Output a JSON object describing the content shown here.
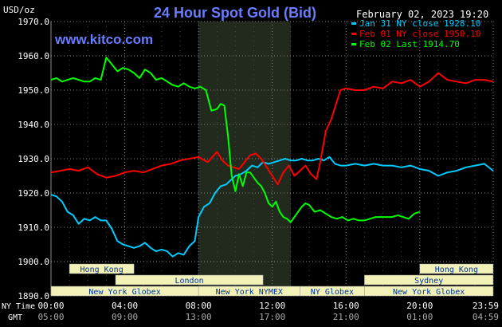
{
  "chart_data": {
    "type": "line",
    "title": "24 Hour Spot Gold (Bid)",
    "watermark": "www.kitco.com",
    "timestamp": "February 02, 2023 19:20",
    "ylabel": "USD/oz",
    "ylim": [
      1890,
      1970
    ],
    "y_ticks": [
      "1970.0",
      "1960.0",
      "1950.0",
      "1940.0",
      "1930.0",
      "1920.0",
      "1910.0",
      "1900.0",
      "1890.0"
    ],
    "x_ticks_ny": [
      "00:00",
      "04:00",
      "08:00",
      "12:00",
      "16:00",
      "20:00",
      "23:59"
    ],
    "x_ticks_gmt": [
      "05:00",
      "09:00",
      "13:00",
      "17:00",
      "21:00",
      "01:00",
      "04:59"
    ],
    "x_tick_hours": [
      0,
      4,
      8,
      12,
      16,
      20,
      23.983
    ],
    "row_labels": [
      "NY Time",
      "GMT"
    ],
    "grid": true,
    "legend_placement": "top-right",
    "shaded_session_hours": [
      8,
      13
    ],
    "colors": {
      "jan31": "#00ccff",
      "feb01": "#ff0000",
      "feb02": "#00ff00",
      "title": "#6a7cff",
      "watermark": "#6a7cff",
      "session_fill": "#f2f2b8",
      "session_text": "#003399",
      "axis_text": "#ffffff",
      "grid": "#888888",
      "shade": "#222a1e"
    },
    "series": [
      {
        "name": "Jan 31 NY close 1928.10",
        "color": "#00ccff",
        "x": [
          0,
          0.3,
          0.6,
          0.9,
          1.2,
          1.5,
          1.8,
          2.1,
          2.4,
          2.7,
          3.0,
          3.3,
          3.6,
          3.9,
          4.2,
          4.5,
          4.8,
          5.1,
          5.4,
          5.7,
          6.0,
          6.3,
          6.6,
          6.9,
          7.2,
          7.5,
          7.8,
          8.0,
          8.3,
          8.6,
          8.9,
          9.2,
          9.5,
          9.7,
          10.0,
          10.3,
          10.6,
          10.9,
          11.2,
          11.5,
          11.8,
          12.1,
          12.4,
          12.7,
          13.0,
          13.3,
          13.6,
          13.9,
          14.2,
          14.5,
          14.8,
          15.1,
          15.4,
          15.7,
          16.0,
          16.5,
          17.0,
          17.5,
          18.0,
          18.5,
          19.0,
          19.5,
          20.0,
          20.5,
          21.0,
          21.5,
          22.0,
          22.5,
          23.0,
          23.5,
          23.98
        ],
        "y": [
          1919.5,
          1919,
          1917.5,
          1914.5,
          1913.5,
          1911,
          1912.5,
          1912,
          1913,
          1912,
          1912,
          1909.5,
          1906,
          1905,
          1904.5,
          1904,
          1904.5,
          1905.5,
          1904,
          1903,
          1903.5,
          1903,
          1901.5,
          1902.5,
          1902,
          1904.5,
          1906,
          1913,
          1916,
          1917,
          1920,
          1922,
          1922.5,
          1923.5,
          1925,
          1925.5,
          1926.5,
          1928,
          1927.5,
          1929,
          1928.5,
          1929,
          1929.5,
          1930,
          1929.5,
          1929.5,
          1930,
          1929.5,
          1929.5,
          1930,
          1929.5,
          1930.5,
          1928.5,
          1928,
          1928,
          1928.5,
          1928,
          1928.5,
          1928,
          1928,
          1927.5,
          1928,
          1927,
          1926.5,
          1925,
          1926,
          1926.5,
          1927.5,
          1928,
          1928.5,
          1926.5
        ]
      },
      {
        "name": "Feb 01 NY close 1950.10",
        "color": "#ff0000",
        "x": [
          0,
          0.5,
          1.0,
          1.5,
          2.0,
          2.5,
          3.0,
          3.5,
          4.0,
          4.5,
          5.0,
          5.5,
          6.0,
          6.5,
          7.0,
          7.5,
          8.0,
          8.5,
          9.0,
          9.3,
          9.6,
          9.9,
          10.2,
          10.5,
          10.8,
          11.1,
          11.4,
          11.7,
          12.0,
          12.3,
          12.6,
          12.9,
          13.2,
          13.5,
          13.8,
          14.1,
          14.4,
          14.6,
          14.9,
          15.2,
          15.4,
          15.7,
          16.0,
          16.5,
          17.0,
          17.5,
          18.0,
          18.5,
          19.0,
          19.5,
          20.0,
          20.5,
          21.0,
          21.5,
          22.0,
          22.5,
          23.0,
          23.5,
          23.98
        ],
        "y": [
          1926,
          1926.5,
          1927,
          1926.5,
          1927.5,
          1925.5,
          1924.5,
          1925,
          1926,
          1926.5,
          1926,
          1927,
          1928,
          1928.5,
          1929.5,
          1930,
          1930.5,
          1929,
          1932,
          1929.5,
          1928,
          1927.5,
          1927,
          1929,
          1931,
          1931.5,
          1930,
          1927.5,
          1925,
          1922.5,
          1926,
          1928,
          1925,
          1926.5,
          1928,
          1925.5,
          1924,
          1929,
          1938,
          1941.5,
          1945,
          1950,
          1950.5,
          1950,
          1950,
          1951,
          1950.5,
          1952.5,
          1952,
          1953,
          1951,
          1952.5,
          1955,
          1953,
          1952.5,
          1952,
          1953,
          1953,
          1952.5
        ]
      },
      {
        "name": "Feb 02 Last 1914.70",
        "color": "#00ff00",
        "x": [
          0,
          0.3,
          0.6,
          0.9,
          1.2,
          1.5,
          1.8,
          2.1,
          2.4,
          2.7,
          3.0,
          3.3,
          3.6,
          3.9,
          4.2,
          4.5,
          4.8,
          5.1,
          5.4,
          5.7,
          6.0,
          6.3,
          6.6,
          6.9,
          7.2,
          7.5,
          7.8,
          8.1,
          8.4,
          8.7,
          9.0,
          9.2,
          9.4,
          9.6,
          9.8,
          10.0,
          10.2,
          10.4,
          10.6,
          10.8,
          11.0,
          11.2,
          11.4,
          11.6,
          11.8,
          12.0,
          12.2,
          12.4,
          12.6,
          12.8,
          13.0,
          13.2,
          13.4,
          13.6,
          13.8,
          14.0,
          14.3,
          14.6,
          14.9,
          15.2,
          15.5,
          15.8,
          16.1,
          16.4,
          16.7,
          17.0,
          17.3,
          17.6,
          17.9,
          18.2,
          18.5,
          18.8,
          19.1,
          19.4,
          19.7,
          20.0
        ],
        "y": [
          1953,
          1953.5,
          1952.5,
          1953,
          1953.5,
          1953,
          1952.5,
          1952.5,
          1953.5,
          1953,
          1959.5,
          1957.5,
          1955.5,
          1956.5,
          1956,
          1955,
          1953.5,
          1956,
          1955,
          1953,
          1953.5,
          1952.5,
          1951.5,
          1951,
          1952,
          1951,
          1950.5,
          1951,
          1950,
          1944,
          1944.5,
          1946,
          1945.5,
          1936.5,
          1925,
          1920.5,
          1925.5,
          1922,
          1926,
          1926,
          1924.5,
          1923,
          1922,
          1920,
          1917,
          1916,
          1917.5,
          1914.5,
          1913,
          1912.5,
          1911.5,
          1913,
          1914.5,
          1916,
          1917,
          1916.5,
          1914.5,
          1915,
          1914,
          1913,
          1912.5,
          1913,
          1912,
          1912.5,
          1912,
          1912,
          1912.5,
          1913,
          1913,
          1913,
          1913,
          1913.5,
          1913,
          1912.5,
          1914,
          1914.5
        ]
      }
    ],
    "sessions": [
      {
        "label": "Hong Kong",
        "start": 1.0,
        "end": 4.5,
        "row": 0
      },
      {
        "label": "Hong Kong",
        "start": 20.0,
        "end": 23.98,
        "row": 0
      },
      {
        "label": "London",
        "start": 3.5,
        "end": 11.5,
        "row": 1
      },
      {
        "label": "Sydney",
        "start": 17.0,
        "end": 23.98,
        "row": 1
      },
      {
        "label": "New York Globex",
        "start": 0.0,
        "end": 8.0,
        "row": 2
      },
      {
        "label": "New York NYMEX",
        "start": 8.0,
        "end": 13.5,
        "row": 2
      },
      {
        "label": "NY Globex",
        "start": 13.5,
        "end": 17.0,
        "row": 2
      },
      {
        "label": "New York Globex",
        "start": 17.0,
        "end": 23.98,
        "row": 2
      }
    ]
  }
}
